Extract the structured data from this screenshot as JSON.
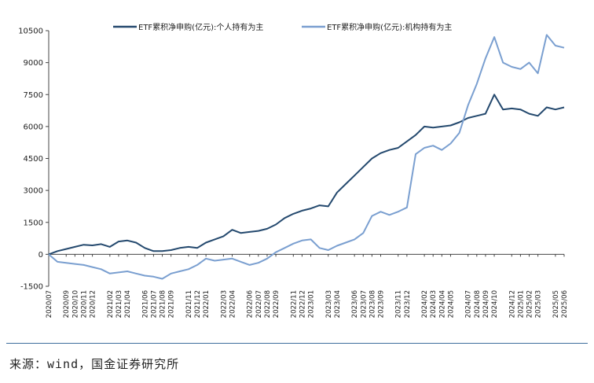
{
  "chart_data": {
    "type": "line",
    "title": "",
    "xlabel": "",
    "ylabel": "",
    "ylim": [
      -1500,
      10500
    ],
    "yticks": [
      -1500,
      0,
      1500,
      3000,
      4500,
      6000,
      7500,
      9000,
      10500
    ],
    "grid": false,
    "legend": "top",
    "x": [
      "2020/07",
      "2020/08",
      "2020/09",
      "2020/10",
      "2020/11",
      "2020/12",
      "2021/01",
      "2021/02",
      "2021/03",
      "2021/04",
      "2021/05",
      "2021/06",
      "2021/07",
      "2021/08",
      "2021/09",
      "2021/10",
      "2021/11",
      "2021/12",
      "2022/01",
      "2022/02",
      "2022/03",
      "2022/04",
      "2022/05",
      "2022/06",
      "2022/07",
      "2022/08",
      "2022/09",
      "2022/10",
      "2022/11",
      "2022/12",
      "2023/01",
      "2023/02",
      "2023/03",
      "2023/04",
      "2023/05",
      "2023/06",
      "2023/07",
      "2023/08",
      "2023/09",
      "2023/10",
      "2023/11",
      "2023/12",
      "2024/01",
      "2024/02",
      "2024/03",
      "2024/04",
      "2024/05",
      "2024/06",
      "2024/07",
      "2024/08",
      "2024/09",
      "2024/10",
      "2024/11",
      "2024/12",
      "2025/01",
      "2025/02",
      "2025/03",
      "2025/04",
      "2025/05",
      "2025/06"
    ],
    "xtick_labels": [
      "2020/07",
      "2020/09",
      "2020/10",
      "2020/11",
      "2020/12",
      "2021/02",
      "2021/03",
      "2021/04",
      "2021/06",
      "2021/07",
      "2021/08",
      "2021/09",
      "2021/11",
      "2021/12",
      "2022/01",
      "2022/03",
      "2022/04",
      "2022/06",
      "2022/07",
      "2022/08",
      "2022/09",
      "2022/11",
      "2022/12",
      "2023/01",
      "2023/03",
      "2023/04",
      "2023/06",
      "2023/07",
      "2023/08",
      "2023/09",
      "2023/11",
      "2023/12",
      "2024/02",
      "2024/03",
      "2024/04",
      "2024/05",
      "2024/07",
      "2024/08",
      "2024/09",
      "2024/10",
      "2024/12",
      "2025/01",
      "2025/02",
      "2025/03",
      "2025/05",
      "2025/06"
    ],
    "series": [
      {
        "name": "ETF累积净申购(亿元):个人持有为主",
        "color": "#24496e",
        "values": [
          0,
          150,
          250,
          350,
          450,
          420,
          480,
          350,
          600,
          650,
          550,
          300,
          150,
          150,
          200,
          300,
          350,
          300,
          550,
          700,
          850,
          1150,
          1000,
          1050,
          1100,
          1200,
          1400,
          1700,
          1900,
          2050,
          2150,
          2300,
          2250,
          2900,
          3300,
          3700,
          4100,
          4500,
          4750,
          4900,
          5000,
          5300,
          5600,
          6000,
          5950,
          6000,
          6050,
          6200,
          6400,
          6500,
          6600,
          7500,
          6800,
          6850,
          6800,
          6600,
          6500,
          6900,
          6800,
          6900
        ]
      },
      {
        "name": "ETF累积净申购(亿元):机构持有为主",
        "color": "#7a9fd0",
        "values": [
          0,
          -350,
          -400,
          -450,
          -500,
          -600,
          -700,
          -900,
          -850,
          -800,
          -900,
          -1000,
          -1050,
          -1150,
          -900,
          -800,
          -700,
          -500,
          -200,
          -300,
          -250,
          -200,
          -350,
          -500,
          -400,
          -200,
          100,
          300,
          500,
          650,
          700,
          300,
          200,
          400,
          550,
          700,
          1000,
          1800,
          2000,
          1850,
          2000,
          2200,
          4700,
          5000,
          5100,
          4900,
          5200,
          5700,
          7000,
          8000,
          9200,
          10200,
          9000,
          8800,
          8700,
          9000,
          8500,
          10300,
          9800,
          9700
        ]
      }
    ]
  },
  "source": "来源：wind，国金证券研究所"
}
